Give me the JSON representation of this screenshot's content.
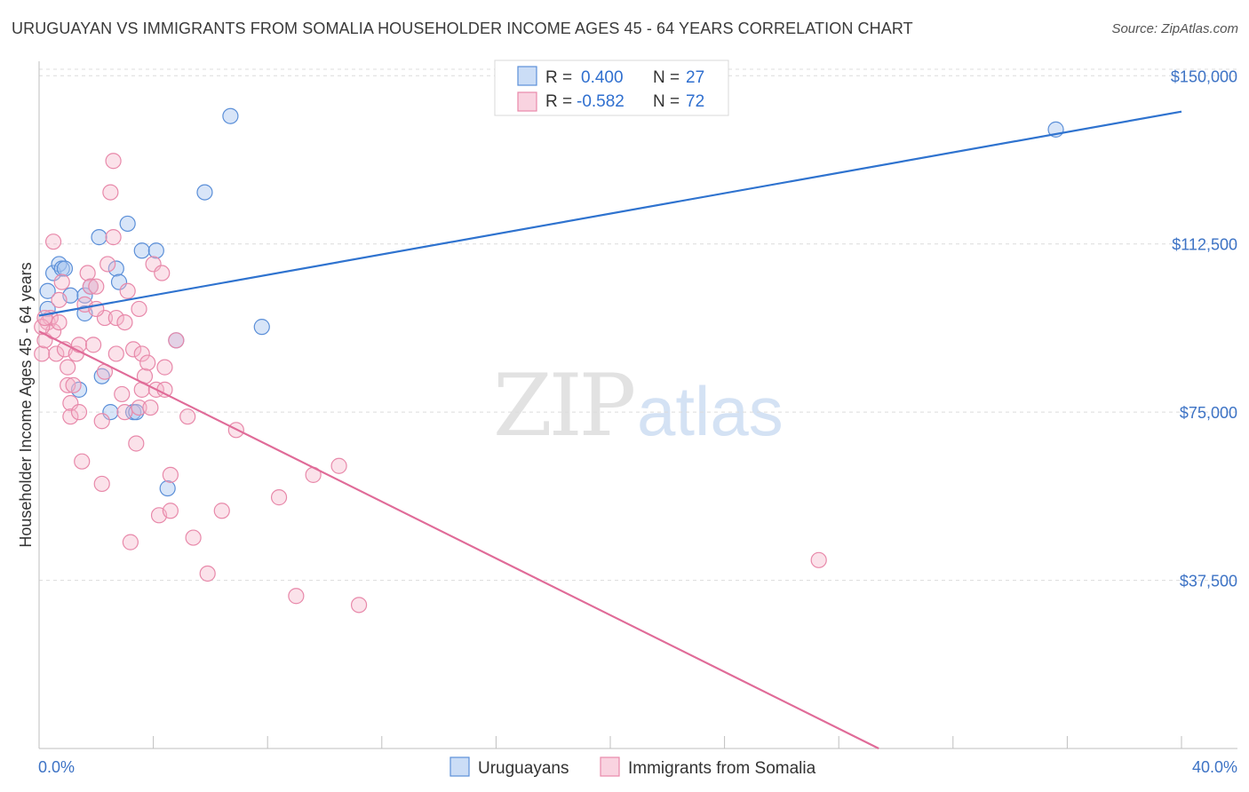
{
  "title": "URUGUAYAN VS IMMIGRANTS FROM SOMALIA HOUSEHOLDER INCOME AGES 45 - 64 YEARS CORRELATION CHART",
  "source": "Source: ZipAtlas.com",
  "watermark": {
    "zip": "ZIP",
    "atlas": "atlas"
  },
  "colors": {
    "blue": "#5b8fd8",
    "blue_fill": "rgba(168,198,240,0.45)",
    "blue_line": "#2f73cf",
    "pink": "#e889aa",
    "pink_fill": "rgba(245,182,203,0.40)",
    "pink_line": "#e06b98",
    "axis_label": "#3d73c5",
    "grid": "#dcdcdc"
  },
  "legend": {
    "rows": [
      {
        "r_label": "R =",
        "r_value": "0.400",
        "n_label": "N =",
        "n_value": "27"
      },
      {
        "r_label": "R =",
        "r_value": "-0.582",
        "n_label": "N =",
        "n_value": "72"
      }
    ]
  },
  "bottom_legend": [
    "Uruguayans",
    "Immigrants from Somalia"
  ],
  "chart_data": {
    "type": "scatter",
    "xlabel": "",
    "ylabel": "Householder Income Ages 45 - 64 years",
    "xlim": [
      0,
      40
    ],
    "ylim": [
      0,
      155000
    ],
    "x_tick_labels": {
      "left": "0.0%",
      "right": "40.0%"
    },
    "y_ticks": [
      37500,
      75000,
      112500,
      150000
    ],
    "y_tick_labels": [
      "$37,500",
      "$75,000",
      "$112,500",
      "$150,000"
    ],
    "series": [
      {
        "name": "Uruguayans",
        "color": "blue",
        "points": [
          [
            0.3,
            102000
          ],
          [
            0.3,
            98000
          ],
          [
            0.5,
            106000
          ],
          [
            0.7,
            108000
          ],
          [
            0.8,
            107000
          ],
          [
            0.9,
            107000
          ],
          [
            1.1,
            101000
          ],
          [
            1.4,
            80000
          ],
          [
            1.6,
            101000
          ],
          [
            1.6,
            97000
          ],
          [
            1.8,
            103000
          ],
          [
            2.1,
            114000
          ],
          [
            2.2,
            83000
          ],
          [
            2.5,
            75000
          ],
          [
            2.7,
            107000
          ],
          [
            2.8,
            104000
          ],
          [
            3.1,
            117000
          ],
          [
            3.3,
            75000
          ],
          [
            3.4,
            75000
          ],
          [
            3.6,
            111000
          ],
          [
            4.1,
            111000
          ],
          [
            4.5,
            58000
          ],
          [
            4.8,
            91000
          ],
          [
            5.8,
            124000
          ],
          [
            6.7,
            141000
          ],
          [
            7.8,
            94000
          ],
          [
            35.6,
            138000
          ]
        ],
        "trend": {
          "x0": 0.0,
          "y0": 96500,
          "x1": 40.0,
          "y1": 142000
        }
      },
      {
        "name": "Immigrants from Somalia",
        "color": "pink",
        "points": [
          [
            0.1,
            88000
          ],
          [
            0.2,
            91000
          ],
          [
            0.3,
            95000
          ],
          [
            0.4,
            96000
          ],
          [
            0.5,
            113000
          ],
          [
            0.5,
            93000
          ],
          [
            0.6,
            88000
          ],
          [
            0.7,
            100000
          ],
          [
            0.7,
            95000
          ],
          [
            0.8,
            104000
          ],
          [
            0.9,
            89000
          ],
          [
            1.0,
            81000
          ],
          [
            1.1,
            77000
          ],
          [
            1.1,
            74000
          ],
          [
            1.2,
            81000
          ],
          [
            1.3,
            88000
          ],
          [
            1.4,
            75000
          ],
          [
            1.4,
            90000
          ],
          [
            1.5,
            64000
          ],
          [
            1.6,
            99000
          ],
          [
            1.7,
            106000
          ],
          [
            1.8,
            103000
          ],
          [
            1.9,
            90000
          ],
          [
            2.0,
            103000
          ],
          [
            2.2,
            59000
          ],
          [
            2.2,
            73000
          ],
          [
            2.3,
            84000
          ],
          [
            2.3,
            96000
          ],
          [
            2.4,
            108000
          ],
          [
            2.5,
            124000
          ],
          [
            2.6,
            131000
          ],
          [
            2.6,
            114000
          ],
          [
            2.7,
            96000
          ],
          [
            2.7,
            88000
          ],
          [
            2.9,
            79000
          ],
          [
            3.0,
            95000
          ],
          [
            3.1,
            102000
          ],
          [
            3.2,
            46000
          ],
          [
            3.3,
            89000
          ],
          [
            3.4,
            68000
          ],
          [
            3.5,
            76000
          ],
          [
            3.5,
            98000
          ],
          [
            3.6,
            88000
          ],
          [
            3.6,
            80000
          ],
          [
            3.7,
            83000
          ],
          [
            3.8,
            86000
          ],
          [
            3.9,
            76000
          ],
          [
            4.0,
            108000
          ],
          [
            4.1,
            80000
          ],
          [
            4.2,
            52000
          ],
          [
            4.3,
            106000
          ],
          [
            4.4,
            85000
          ],
          [
            4.4,
            80000
          ],
          [
            4.6,
            61000
          ],
          [
            4.6,
            53000
          ],
          [
            4.8,
            91000
          ],
          [
            5.2,
            74000
          ],
          [
            5.4,
            47000
          ],
          [
            5.9,
            39000
          ],
          [
            6.4,
            53000
          ],
          [
            6.9,
            71000
          ],
          [
            8.4,
            56000
          ],
          [
            9.0,
            34000
          ],
          [
            9.6,
            61000
          ],
          [
            10.5,
            63000
          ],
          [
            11.2,
            32000
          ],
          [
            27.3,
            42000
          ],
          [
            0.1,
            94000
          ],
          [
            0.2,
            96000
          ],
          [
            1.0,
            85000
          ],
          [
            2.0,
            98000
          ],
          [
            3.0,
            75000
          ]
        ],
        "trend": {
          "x0": 0.0,
          "y0": 93000,
          "x1": 29.4,
          "y1": 0
        }
      }
    ]
  }
}
